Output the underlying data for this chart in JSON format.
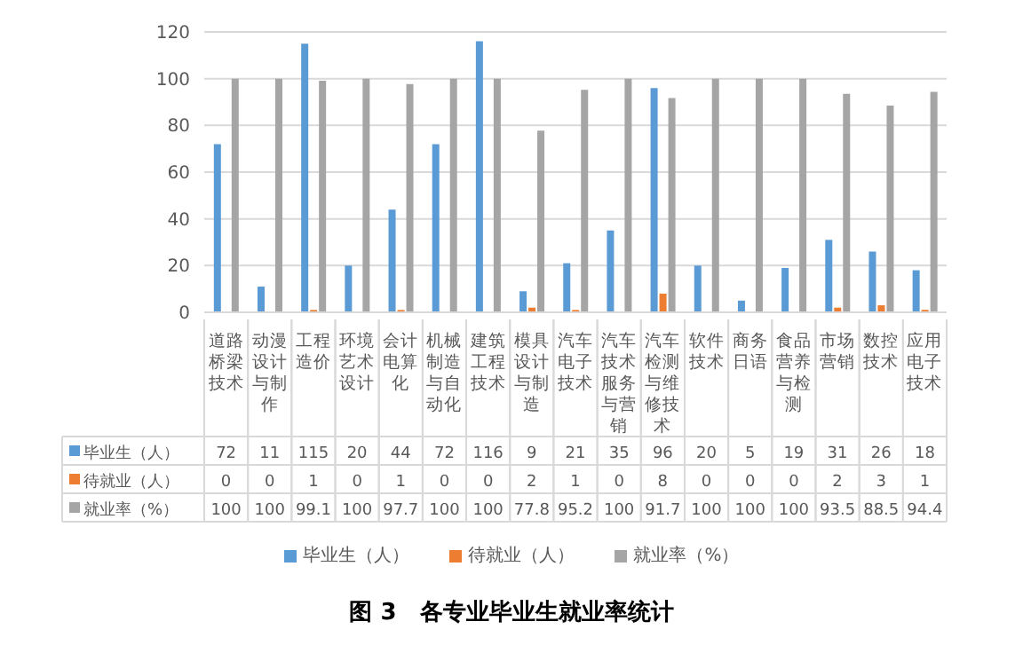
{
  "chart_data": {
    "type": "bar",
    "categories": [
      "道路桥梁技术",
      "动漫设计与制作",
      "工程造价",
      "环境艺术设计",
      "会计电算化",
      "机械制造与自动化",
      "建筑工程技术",
      "模具设计与制造",
      "汽车电子技术",
      "汽车技术服务与营销",
      "汽车检测与维修技术",
      "软件技术",
      "商务日语",
      "食品营养与检测",
      "市场营销",
      "数控技术",
      "应用电子技术"
    ],
    "series": [
      {
        "name": "毕业生（人）",
        "color": "#5b9bd5",
        "values": [
          72,
          11,
          115,
          20,
          44,
          72,
          116,
          9,
          21,
          35,
          96,
          20,
          5,
          19,
          31,
          26,
          18
        ]
      },
      {
        "name": "待就业（人）",
        "color": "#ed7d31",
        "values": [
          0,
          0,
          1,
          0,
          1,
          0,
          0,
          2,
          1,
          0,
          8,
          0,
          0,
          0,
          2,
          3,
          1
        ]
      },
      {
        "name": "就业率（%）",
        "color": "#a5a5a5",
        "values": [
          100,
          100,
          99.1,
          100,
          97.7,
          100,
          100,
          77.8,
          95.2,
          100,
          91.7,
          100,
          100,
          100,
          93.5,
          88.5,
          94.4
        ]
      }
    ],
    "ylim": [
      0,
      120
    ],
    "yticks": [
      0,
      20,
      40,
      60,
      80,
      100,
      120
    ],
    "grid": "y",
    "legend": "bottom",
    "data_labels": true,
    "annotations": [
      "图 3　各专业毕业生就业率统计"
    ]
  }
}
